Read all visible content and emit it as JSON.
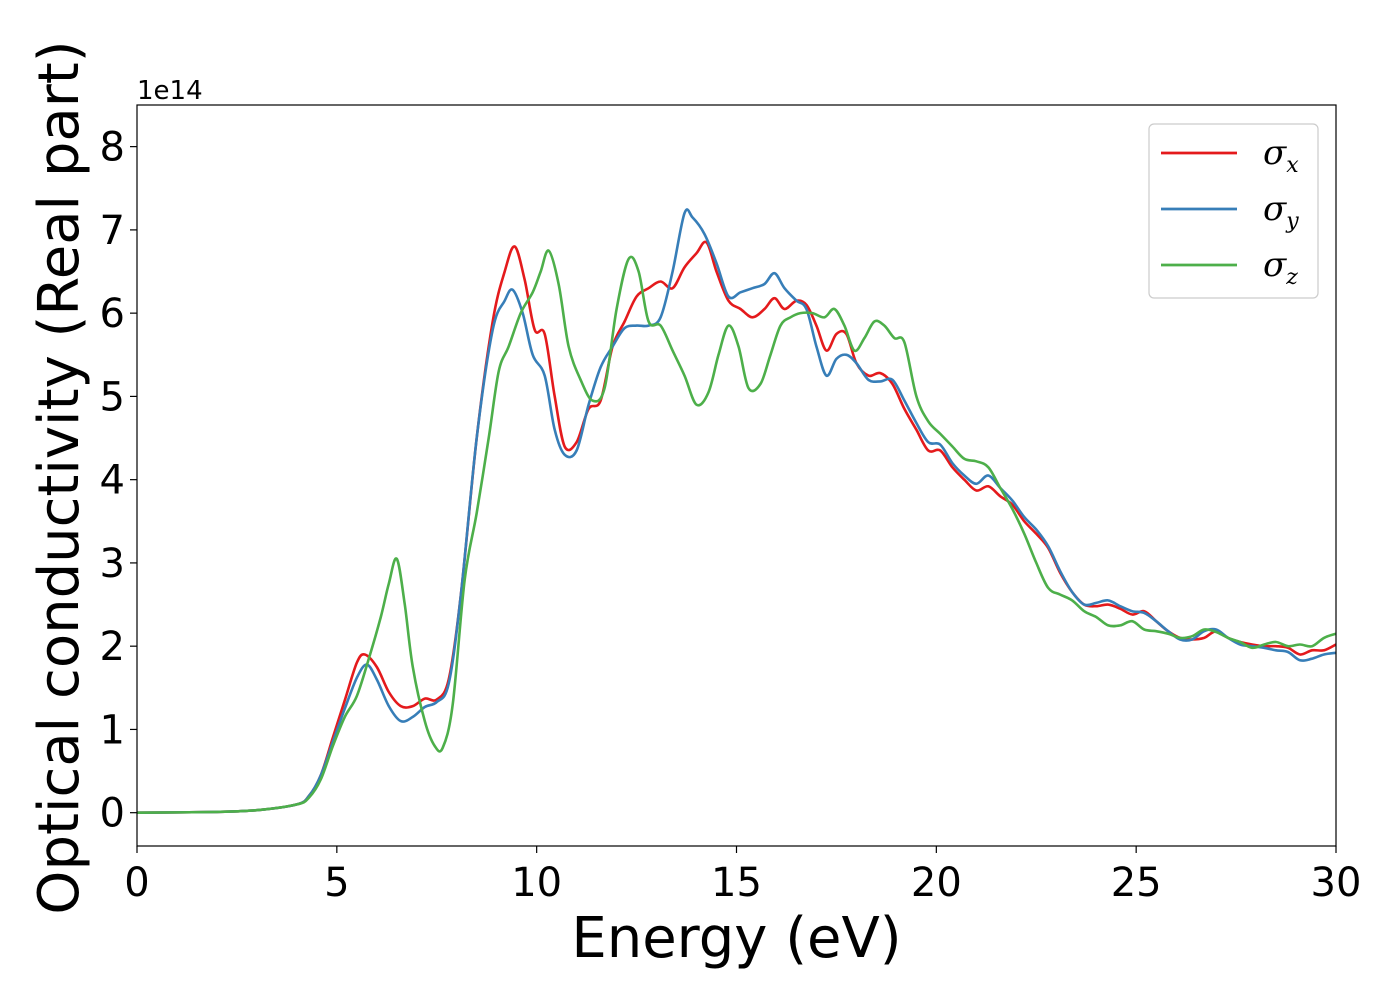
{
  "chart_data": {
    "type": "line",
    "xlabel": "Energy (eV)",
    "ylabel": "Optical conductivity (Real part)",
    "y_offset_text": "1e14",
    "xlim": [
      0,
      30
    ],
    "ylim": [
      -0.4,
      8.5
    ],
    "x_ticks": [
      0,
      5,
      10,
      15,
      20,
      25,
      30
    ],
    "y_ticks": [
      0,
      1,
      2,
      3,
      4,
      5,
      6,
      7,
      8
    ],
    "grid": false,
    "legend_position": "top-right",
    "series": [
      {
        "name": "σ",
        "subscript": "x",
        "color": "#e41a1c",
        "points": [
          [
            0,
            0
          ],
          [
            2,
            0.01
          ],
          [
            3,
            0.03
          ],
          [
            4,
            0.1
          ],
          [
            4.3,
            0.2
          ],
          [
            4.6,
            0.45
          ],
          [
            4.9,
            0.9
          ],
          [
            5.2,
            1.35
          ],
          [
            5.5,
            1.8
          ],
          [
            5.7,
            1.9
          ],
          [
            6.0,
            1.75
          ],
          [
            6.3,
            1.45
          ],
          [
            6.6,
            1.28
          ],
          [
            6.9,
            1.28
          ],
          [
            7.2,
            1.37
          ],
          [
            7.5,
            1.36
          ],
          [
            7.8,
            1.6
          ],
          [
            8.1,
            2.6
          ],
          [
            8.5,
            4.5
          ],
          [
            8.9,
            5.9
          ],
          [
            9.2,
            6.5
          ],
          [
            9.45,
            6.8
          ],
          [
            9.7,
            6.4
          ],
          [
            9.95,
            5.8
          ],
          [
            10.2,
            5.75
          ],
          [
            10.45,
            5.0
          ],
          [
            10.7,
            4.4
          ],
          [
            11.0,
            4.45
          ],
          [
            11.3,
            4.85
          ],
          [
            11.6,
            4.95
          ],
          [
            11.9,
            5.6
          ],
          [
            12.2,
            5.9
          ],
          [
            12.5,
            6.2
          ],
          [
            12.8,
            6.3
          ],
          [
            13.1,
            6.38
          ],
          [
            13.4,
            6.3
          ],
          [
            13.7,
            6.55
          ],
          [
            14.0,
            6.72
          ],
          [
            14.25,
            6.85
          ],
          [
            14.5,
            6.5
          ],
          [
            14.8,
            6.15
          ],
          [
            15.1,
            6.05
          ],
          [
            15.4,
            5.95
          ],
          [
            15.7,
            6.05
          ],
          [
            15.95,
            6.18
          ],
          [
            16.2,
            6.05
          ],
          [
            16.5,
            6.15
          ],
          [
            16.75,
            6.1
          ],
          [
            17.0,
            5.85
          ],
          [
            17.25,
            5.55
          ],
          [
            17.5,
            5.75
          ],
          [
            17.75,
            5.75
          ],
          [
            18.0,
            5.4
          ],
          [
            18.3,
            5.25
          ],
          [
            18.6,
            5.28
          ],
          [
            18.9,
            5.15
          ],
          [
            19.2,
            4.85
          ],
          [
            19.5,
            4.6
          ],
          [
            19.8,
            4.35
          ],
          [
            20.1,
            4.35
          ],
          [
            20.4,
            4.15
          ],
          [
            20.7,
            4.0
          ],
          [
            21.0,
            3.87
          ],
          [
            21.3,
            3.92
          ],
          [
            21.6,
            3.8
          ],
          [
            21.9,
            3.7
          ],
          [
            22.2,
            3.5
          ],
          [
            22.5,
            3.35
          ],
          [
            22.8,
            3.18
          ],
          [
            23.1,
            2.88
          ],
          [
            23.4,
            2.65
          ],
          [
            23.7,
            2.5
          ],
          [
            24.0,
            2.48
          ],
          [
            24.3,
            2.5
          ],
          [
            24.6,
            2.45
          ],
          [
            24.9,
            2.38
          ],
          [
            25.2,
            2.42
          ],
          [
            25.5,
            2.3
          ],
          [
            25.8,
            2.18
          ],
          [
            26.1,
            2.1
          ],
          [
            26.4,
            2.08
          ],
          [
            26.7,
            2.1
          ],
          [
            27.0,
            2.18
          ],
          [
            27.3,
            2.1
          ],
          [
            27.6,
            2.05
          ],
          [
            27.9,
            2.02
          ],
          [
            28.2,
            2.0
          ],
          [
            28.5,
            2.0
          ],
          [
            28.8,
            1.98
          ],
          [
            29.1,
            1.9
          ],
          [
            29.4,
            1.95
          ],
          [
            29.7,
            1.95
          ],
          [
            30.0,
            2.02
          ]
        ]
      },
      {
        "name": "σ",
        "subscript": "y",
        "color": "#377eb8",
        "points": [
          [
            0,
            0
          ],
          [
            2,
            0.01
          ],
          [
            3,
            0.03
          ],
          [
            4,
            0.1
          ],
          [
            4.3,
            0.2
          ],
          [
            4.6,
            0.45
          ],
          [
            4.9,
            0.85
          ],
          [
            5.2,
            1.25
          ],
          [
            5.5,
            1.62
          ],
          [
            5.75,
            1.78
          ],
          [
            6.0,
            1.6
          ],
          [
            6.3,
            1.28
          ],
          [
            6.6,
            1.1
          ],
          [
            6.9,
            1.15
          ],
          [
            7.2,
            1.27
          ],
          [
            7.5,
            1.33
          ],
          [
            7.8,
            1.55
          ],
          [
            8.1,
            2.6
          ],
          [
            8.5,
            4.5
          ],
          [
            8.9,
            5.8
          ],
          [
            9.2,
            6.15
          ],
          [
            9.4,
            6.28
          ],
          [
            9.65,
            6.0
          ],
          [
            9.9,
            5.5
          ],
          [
            10.2,
            5.25
          ],
          [
            10.45,
            4.6
          ],
          [
            10.7,
            4.3
          ],
          [
            11.0,
            4.35
          ],
          [
            11.3,
            4.9
          ],
          [
            11.6,
            5.35
          ],
          [
            11.9,
            5.6
          ],
          [
            12.2,
            5.82
          ],
          [
            12.5,
            5.85
          ],
          [
            12.8,
            5.85
          ],
          [
            13.1,
            5.95
          ],
          [
            13.4,
            6.5
          ],
          [
            13.7,
            7.2
          ],
          [
            13.9,
            7.15
          ],
          [
            14.2,
            6.95
          ],
          [
            14.5,
            6.6
          ],
          [
            14.8,
            6.2
          ],
          [
            15.1,
            6.25
          ],
          [
            15.4,
            6.3
          ],
          [
            15.7,
            6.35
          ],
          [
            15.95,
            6.48
          ],
          [
            16.2,
            6.3
          ],
          [
            16.5,
            6.15
          ],
          [
            16.75,
            6.05
          ],
          [
            17.0,
            5.6
          ],
          [
            17.25,
            5.25
          ],
          [
            17.5,
            5.45
          ],
          [
            17.75,
            5.5
          ],
          [
            18.0,
            5.4
          ],
          [
            18.3,
            5.2
          ],
          [
            18.6,
            5.18
          ],
          [
            18.9,
            5.2
          ],
          [
            19.2,
            4.95
          ],
          [
            19.5,
            4.68
          ],
          [
            19.8,
            4.45
          ],
          [
            20.1,
            4.42
          ],
          [
            20.4,
            4.2
          ],
          [
            20.7,
            4.05
          ],
          [
            21.0,
            3.95
          ],
          [
            21.3,
            4.05
          ],
          [
            21.6,
            3.9
          ],
          [
            21.9,
            3.75
          ],
          [
            22.2,
            3.55
          ],
          [
            22.5,
            3.4
          ],
          [
            22.8,
            3.2
          ],
          [
            23.1,
            2.9
          ],
          [
            23.4,
            2.65
          ],
          [
            23.7,
            2.5
          ],
          [
            24.0,
            2.52
          ],
          [
            24.3,
            2.55
          ],
          [
            24.6,
            2.48
          ],
          [
            24.9,
            2.42
          ],
          [
            25.2,
            2.4
          ],
          [
            25.5,
            2.3
          ],
          [
            25.8,
            2.18
          ],
          [
            26.1,
            2.08
          ],
          [
            26.4,
            2.08
          ],
          [
            26.7,
            2.18
          ],
          [
            27.0,
            2.2
          ],
          [
            27.3,
            2.1
          ],
          [
            27.6,
            2.02
          ],
          [
            27.9,
            2.0
          ],
          [
            28.2,
            1.98
          ],
          [
            28.5,
            1.95
          ],
          [
            28.8,
            1.93
          ],
          [
            29.1,
            1.83
          ],
          [
            29.4,
            1.85
          ],
          [
            29.7,
            1.9
          ],
          [
            30.0,
            1.92
          ]
        ]
      },
      {
        "name": "σ",
        "subscript": "z",
        "color": "#4daf4a",
        "points": [
          [
            0,
            0
          ],
          [
            2,
            0.01
          ],
          [
            3,
            0.03
          ],
          [
            4,
            0.1
          ],
          [
            4.3,
            0.18
          ],
          [
            4.6,
            0.4
          ],
          [
            4.9,
            0.8
          ],
          [
            5.2,
            1.15
          ],
          [
            5.5,
            1.4
          ],
          [
            5.8,
            1.85
          ],
          [
            6.1,
            2.35
          ],
          [
            6.3,
            2.75
          ],
          [
            6.5,
            3.05
          ],
          [
            6.7,
            2.5
          ],
          [
            6.9,
            1.75
          ],
          [
            7.2,
            1.1
          ],
          [
            7.45,
            0.8
          ],
          [
            7.65,
            0.78
          ],
          [
            7.9,
            1.3
          ],
          [
            8.2,
            2.8
          ],
          [
            8.5,
            3.6
          ],
          [
            8.8,
            4.5
          ],
          [
            9.05,
            5.3
          ],
          [
            9.3,
            5.6
          ],
          [
            9.6,
            6.0
          ],
          [
            9.9,
            6.25
          ],
          [
            10.1,
            6.5
          ],
          [
            10.3,
            6.75
          ],
          [
            10.55,
            6.35
          ],
          [
            10.8,
            5.6
          ],
          [
            11.1,
            5.2
          ],
          [
            11.4,
            4.95
          ],
          [
            11.7,
            5.1
          ],
          [
            12.0,
            6.05
          ],
          [
            12.3,
            6.65
          ],
          [
            12.55,
            6.5
          ],
          [
            12.8,
            5.9
          ],
          [
            13.1,
            5.85
          ],
          [
            13.4,
            5.55
          ],
          [
            13.7,
            5.25
          ],
          [
            14.0,
            4.9
          ],
          [
            14.3,
            5.05
          ],
          [
            14.55,
            5.5
          ],
          [
            14.8,
            5.85
          ],
          [
            15.05,
            5.6
          ],
          [
            15.3,
            5.1
          ],
          [
            15.6,
            5.15
          ],
          [
            15.85,
            5.5
          ],
          [
            16.1,
            5.85
          ],
          [
            16.35,
            5.95
          ],
          [
            16.6,
            6.0
          ],
          [
            16.9,
            6.0
          ],
          [
            17.2,
            5.95
          ],
          [
            17.45,
            6.05
          ],
          [
            17.7,
            5.85
          ],
          [
            17.95,
            5.55
          ],
          [
            18.2,
            5.7
          ],
          [
            18.45,
            5.9
          ],
          [
            18.7,
            5.85
          ],
          [
            18.95,
            5.7
          ],
          [
            19.2,
            5.65
          ],
          [
            19.5,
            5.0
          ],
          [
            19.8,
            4.7
          ],
          [
            20.1,
            4.55
          ],
          [
            20.4,
            4.4
          ],
          [
            20.7,
            4.25
          ],
          [
            21.0,
            4.22
          ],
          [
            21.3,
            4.15
          ],
          [
            21.6,
            3.9
          ],
          [
            21.9,
            3.65
          ],
          [
            22.2,
            3.35
          ],
          [
            22.5,
            3.0
          ],
          [
            22.8,
            2.7
          ],
          [
            23.1,
            2.62
          ],
          [
            23.4,
            2.55
          ],
          [
            23.7,
            2.42
          ],
          [
            24.0,
            2.35
          ],
          [
            24.3,
            2.25
          ],
          [
            24.6,
            2.25
          ],
          [
            24.9,
            2.3
          ],
          [
            25.2,
            2.2
          ],
          [
            25.5,
            2.18
          ],
          [
            25.8,
            2.15
          ],
          [
            26.1,
            2.1
          ],
          [
            26.4,
            2.12
          ],
          [
            26.7,
            2.2
          ],
          [
            27.0,
            2.17
          ],
          [
            27.3,
            2.1
          ],
          [
            27.6,
            2.05
          ],
          [
            27.9,
            1.98
          ],
          [
            28.2,
            2.02
          ],
          [
            28.5,
            2.05
          ],
          [
            28.8,
            2.0
          ],
          [
            29.1,
            2.02
          ],
          [
            29.4,
            2.0
          ],
          [
            29.7,
            2.1
          ],
          [
            30.0,
            2.15
          ]
        ]
      }
    ]
  }
}
